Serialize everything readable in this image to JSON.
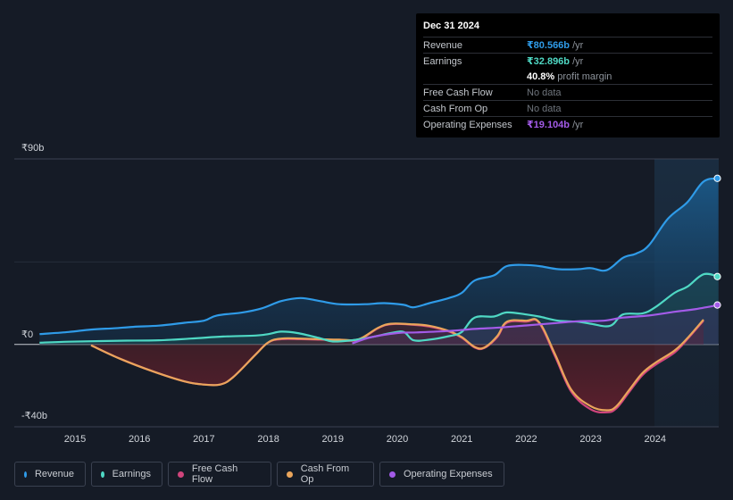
{
  "tooltip": {
    "date": "Dec 31 2024",
    "rows": [
      {
        "label": "Revenue",
        "value": "₹80.566b",
        "suffix": " /yr",
        "color": "#2f9be8"
      },
      {
        "label": "Earnings",
        "value": "₹32.896b",
        "suffix": " /yr",
        "color": "#4fd8c4"
      },
      {
        "label": "",
        "value": "40.8%",
        "suffix": " profit margin",
        "color": "#ffffff"
      },
      {
        "label": "Free Cash Flow",
        "value": "",
        "suffix": "No data",
        "color": "#8d939b"
      },
      {
        "label": "Cash From Op",
        "value": "",
        "suffix": "No data",
        "color": "#8d939b"
      },
      {
        "label": "Operating Expenses",
        "value": "₹19.104b",
        "suffix": " /yr",
        "color": "#a35be8"
      }
    ]
  },
  "legend": [
    {
      "label": "Revenue",
      "color": "#2f9be8"
    },
    {
      "label": "Earnings",
      "color": "#4fd8c4"
    },
    {
      "label": "Free Cash Flow",
      "color": "#d0457c"
    },
    {
      "label": "Cash From Op",
      "color": "#eaa55b"
    },
    {
      "label": "Operating Expenses",
      "color": "#a35be8"
    }
  ],
  "chart_data": {
    "type": "area",
    "title": "",
    "xlabel": "",
    "ylabel": "",
    "y_unit": "₹ billions",
    "ylim": [
      -40,
      90
    ],
    "ytick_labels": [
      "₹90b",
      "₹0",
      "-₹40b"
    ],
    "xticks": [
      2015,
      2016,
      2017,
      2018,
      2019,
      2020,
      2021,
      2022,
      2023,
      2024
    ],
    "series": [
      {
        "name": "Revenue",
        "color": "#2f9be8",
        "points": [
          [
            2014.45,
            5
          ],
          [
            2014.9,
            6
          ],
          [
            2015.25,
            7.2
          ],
          [
            2015.6,
            7.8
          ],
          [
            2015.9,
            8.5
          ],
          [
            2016.3,
            9.1
          ],
          [
            2016.7,
            10.5
          ],
          [
            2017.0,
            11.5
          ],
          [
            2017.2,
            14
          ],
          [
            2017.6,
            15.5
          ],
          [
            2017.9,
            17.5
          ],
          [
            2018.2,
            21
          ],
          [
            2018.5,
            22.5
          ],
          [
            2018.8,
            21
          ],
          [
            2019.1,
            19.5
          ],
          [
            2019.5,
            19.5
          ],
          [
            2019.8,
            20
          ],
          [
            2020.1,
            19.2
          ],
          [
            2020.25,
            18
          ],
          [
            2020.5,
            20
          ],
          [
            2020.8,
            22.5
          ],
          [
            2021.0,
            25
          ],
          [
            2021.2,
            31
          ],
          [
            2021.5,
            33.5
          ],
          [
            2021.7,
            38
          ],
          [
            2022.0,
            38.5
          ],
          [
            2022.2,
            38
          ],
          [
            2022.5,
            36.5
          ],
          [
            2022.8,
            36.5
          ],
          [
            2023.0,
            37
          ],
          [
            2023.25,
            36
          ],
          [
            2023.5,
            42
          ],
          [
            2023.7,
            44
          ],
          [
            2023.9,
            48
          ],
          [
            2024.2,
            61
          ],
          [
            2024.5,
            69
          ],
          [
            2024.75,
            79
          ],
          [
            2024.98,
            80.566
          ]
        ]
      },
      {
        "name": "Earnings",
        "color": "#4fd8c4",
        "points": [
          [
            2014.45,
            0.8
          ],
          [
            2014.9,
            1.3
          ],
          [
            2015.4,
            1.6
          ],
          [
            2015.8,
            1.8
          ],
          [
            2016.3,
            2
          ],
          [
            2016.8,
            2.8
          ],
          [
            2017.3,
            3.8
          ],
          [
            2017.8,
            4.3
          ],
          [
            2018.0,
            5
          ],
          [
            2018.2,
            6.2
          ],
          [
            2018.45,
            5.5
          ],
          [
            2018.8,
            3
          ],
          [
            2019.0,
            1.4
          ],
          [
            2019.3,
            2
          ],
          [
            2019.6,
            3.5
          ],
          [
            2019.9,
            5.5
          ],
          [
            2020.1,
            6
          ],
          [
            2020.25,
            2
          ],
          [
            2020.5,
            2.3
          ],
          [
            2020.8,
            4
          ],
          [
            2021.0,
            6
          ],
          [
            2021.2,
            13
          ],
          [
            2021.5,
            13.5
          ],
          [
            2021.7,
            15.5
          ],
          [
            2022.0,
            14.5
          ],
          [
            2022.2,
            13.5
          ],
          [
            2022.5,
            11.5
          ],
          [
            2022.8,
            11
          ],
          [
            2023.0,
            10
          ],
          [
            2023.3,
            9
          ],
          [
            2023.5,
            14.5
          ],
          [
            2023.8,
            15
          ],
          [
            2024.0,
            18
          ],
          [
            2024.3,
            25
          ],
          [
            2024.5,
            28
          ],
          [
            2024.75,
            34
          ],
          [
            2024.98,
            32.896
          ]
        ]
      },
      {
        "name": "Cash From Op",
        "color": "#eaa55b",
        "points": [
          [
            2015.25,
            -0.5
          ],
          [
            2015.7,
            -7
          ],
          [
            2016.2,
            -13
          ],
          [
            2016.7,
            -18
          ],
          [
            2017.0,
            -19.5
          ],
          [
            2017.25,
            -19.5
          ],
          [
            2017.45,
            -16
          ],
          [
            2017.8,
            -5
          ],
          [
            2018.0,
            1
          ],
          [
            2018.2,
            2.8
          ],
          [
            2018.5,
            2.8
          ],
          [
            2018.8,
            2.5
          ],
          [
            2019.1,
            2.3
          ],
          [
            2019.4,
            2.5
          ],
          [
            2019.7,
            8
          ],
          [
            2019.9,
            10
          ],
          [
            2020.2,
            9.8
          ],
          [
            2020.5,
            9
          ],
          [
            2020.8,
            6.5
          ],
          [
            2021.0,
            3.5
          ],
          [
            2021.2,
            -1.2
          ],
          [
            2021.35,
            -1.5
          ],
          [
            2021.55,
            4
          ],
          [
            2021.7,
            11
          ],
          [
            2022.0,
            11.5
          ],
          [
            2022.2,
            10.8
          ],
          [
            2022.45,
            -5
          ],
          [
            2022.7,
            -22
          ],
          [
            2023.0,
            -30
          ],
          [
            2023.25,
            -32
          ],
          [
            2023.4,
            -30
          ],
          [
            2023.6,
            -22
          ],
          [
            2023.8,
            -14
          ],
          [
            2024.0,
            -9
          ],
          [
            2024.3,
            -3
          ],
          [
            2024.5,
            3
          ],
          [
            2024.75,
            12
          ]
        ]
      },
      {
        "name": "Free Cash Flow",
        "color": "#d0457c",
        "points": [
          [
            2015.25,
            -0.5
          ],
          [
            2015.7,
            -7
          ],
          [
            2016.2,
            -13
          ],
          [
            2016.7,
            -18
          ],
          [
            2017.0,
            -19.5
          ],
          [
            2017.25,
            -19.5
          ],
          [
            2017.45,
            -16
          ],
          [
            2017.8,
            -5
          ],
          [
            2018.0,
            1
          ],
          [
            2018.2,
            2.5
          ],
          [
            2018.5,
            2.5
          ],
          [
            2018.8,
            2.3
          ],
          [
            2019.1,
            2.0
          ],
          [
            2019.4,
            2.2
          ],
          [
            2019.7,
            7.8
          ],
          [
            2019.9,
            9.8
          ],
          [
            2020.2,
            9.6
          ],
          [
            2020.5,
            8.6
          ],
          [
            2020.8,
            6.2
          ],
          [
            2021.0,
            3.2
          ],
          [
            2021.2,
            -1.5
          ],
          [
            2021.35,
            -1.8
          ],
          [
            2021.55,
            3.5
          ],
          [
            2021.7,
            10.5
          ],
          [
            2022.0,
            11
          ],
          [
            2022.2,
            10.4
          ],
          [
            2022.45,
            -6
          ],
          [
            2022.7,
            -23
          ],
          [
            2023.0,
            -31.5
          ],
          [
            2023.25,
            -33
          ],
          [
            2023.4,
            -31
          ],
          [
            2023.6,
            -23
          ],
          [
            2023.8,
            -15
          ],
          [
            2024.0,
            -10
          ],
          [
            2024.3,
            -4
          ],
          [
            2024.5,
            2.5
          ],
          [
            2024.75,
            11.5
          ]
        ]
      },
      {
        "name": "Operating Expenses",
        "color": "#a35be8",
        "points": [
          [
            2019.3,
            0.5
          ],
          [
            2019.6,
            3.5
          ],
          [
            2020.0,
            5.5
          ],
          [
            2020.3,
            5.8
          ],
          [
            2020.8,
            6.5
          ],
          [
            2021.2,
            7.5
          ],
          [
            2021.6,
            8.2
          ],
          [
            2022.0,
            9.2
          ],
          [
            2022.4,
            10.2
          ],
          [
            2022.8,
            11.2
          ],
          [
            2023.2,
            11.5
          ],
          [
            2023.5,
            13
          ],
          [
            2023.9,
            14
          ],
          [
            2024.3,
            15.8
          ],
          [
            2024.6,
            17
          ],
          [
            2024.98,
            19.104
          ]
        ]
      }
    ]
  }
}
